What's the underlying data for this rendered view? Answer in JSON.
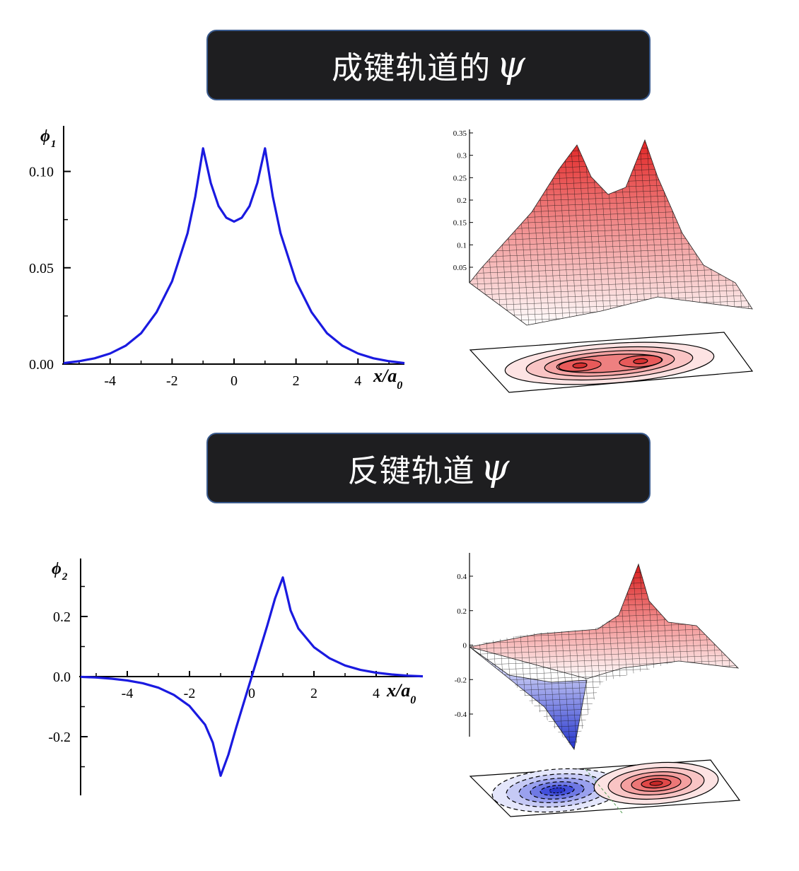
{
  "banners": {
    "bonding": {
      "text": "成键轨道的",
      "symbol": "ψ"
    },
    "antibonding": {
      "text": "反键轨道",
      "symbol": "ψ"
    }
  },
  "chart_data": [
    {
      "type": "line",
      "ylabel": "φ1",
      "xlabel": "x/a0",
      "xlim": [
        -5.5,
        5.5
      ],
      "ylim": [
        0,
        0.12
      ],
      "x_ticks": [
        "-4",
        "-2",
        "0",
        "2",
        "4"
      ],
      "y_ticks": [
        "0.00",
        "0.05",
        "0.10"
      ],
      "color": "#1a1ae0",
      "x": [
        -5.5,
        -5,
        -4.5,
        -4,
        -3.5,
        -3,
        -2.5,
        -2,
        -1.5,
        -1.25,
        -1,
        -0.75,
        -0.5,
        -0.25,
        0,
        0.25,
        0.5,
        0.75,
        1,
        1.25,
        1.5,
        2,
        2.5,
        3,
        3.5,
        4,
        4.5,
        5,
        5.5
      ],
      "y": [
        0.0005,
        0.0015,
        0.003,
        0.0055,
        0.0095,
        0.016,
        0.027,
        0.043,
        0.068,
        0.087,
        0.112,
        0.094,
        0.082,
        0.076,
        0.074,
        0.076,
        0.082,
        0.094,
        0.112,
        0.087,
        0.068,
        0.043,
        0.027,
        0.016,
        0.0095,
        0.0055,
        0.003,
        0.0015,
        0.0005
      ]
    },
    {
      "type": "surface",
      "color": "#e03030",
      "z_ticks": [
        "0.35",
        "0.3",
        "0.25",
        "0.2",
        "0.15",
        "0.1",
        "0.05"
      ]
    },
    {
      "type": "line",
      "ylabel": "φ2",
      "xlabel": "x/a0",
      "xlim": [
        -5.5,
        5.5
      ],
      "ylim": [
        -0.4,
        0.4
      ],
      "x_ticks": [
        "-4",
        "-2",
        "0",
        "2",
        "4"
      ],
      "y_ticks": [
        "0.2",
        "0.0",
        "-0.2"
      ],
      "color": "#1a1ae0",
      "x": [
        -5.5,
        -5,
        -4.5,
        -4,
        -3.5,
        -3,
        -2.5,
        -2,
        -1.5,
        -1.25,
        -1,
        -0.75,
        -0.5,
        -0.25,
        0,
        0.25,
        0.5,
        0.75,
        1,
        1.25,
        1.5,
        2,
        2.5,
        3,
        3.5,
        4,
        4.5,
        5,
        5.5
      ],
      "y": [
        -0.001,
        -0.003,
        -0.007,
        -0.013,
        -0.022,
        -0.037,
        -0.061,
        -0.098,
        -0.16,
        -0.22,
        -0.33,
        -0.26,
        -0.17,
        -0.085,
        0,
        0.085,
        0.17,
        0.26,
        0.33,
        0.22,
        0.16,
        0.098,
        0.061,
        0.037,
        0.022,
        0.013,
        0.007,
        0.003,
        0.001
      ]
    },
    {
      "type": "surface",
      "colors": [
        "#e03030",
        "#3040d8"
      ],
      "z_ticks": [
        "0.4",
        "0.2",
        "0",
        "-0.2",
        "-0.4"
      ]
    }
  ]
}
